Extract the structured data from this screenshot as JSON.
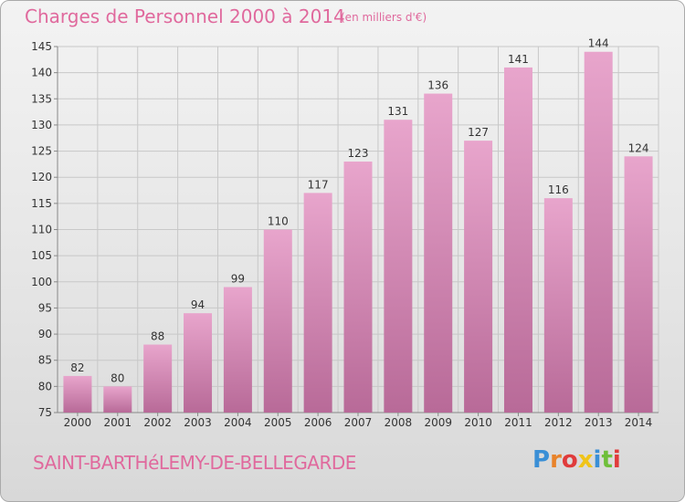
{
  "header": {
    "title": "Charges de Personnel 2000 à 2014",
    "unit": "(en milliers d'€)"
  },
  "footer": {
    "place": "SAINT-BARTHéLEMY-DE-BELLEGARDE",
    "brand": "Proxiti",
    "brand_colors": [
      "#3a8fd6",
      "#e8832a",
      "#e03b3b",
      "#f0c419",
      "#3a8fd6",
      "#6fbf3a",
      "#e03b3b"
    ]
  },
  "colors": {
    "bar_top": "#e8a5cc",
    "bar_bottom": "#b86a98",
    "title": "#e0699d",
    "grid": "#c8c8c8",
    "axis_text": "#333333"
  },
  "chart_data": {
    "type": "bar",
    "title": "Charges de Personnel 2000 à 2014",
    "subtitle": "(en milliers d'€)",
    "categories": [
      "2000",
      "2001",
      "2002",
      "2003",
      "2004",
      "2005",
      "2006",
      "2007",
      "2008",
      "2009",
      "2010",
      "2011",
      "2012",
      "2013",
      "2014"
    ],
    "values": [
      82,
      80,
      88,
      94,
      99,
      110,
      117,
      123,
      131,
      136,
      127,
      141,
      116,
      144,
      124
    ],
    "ylim": [
      75,
      145
    ],
    "yticks": [
      75,
      80,
      85,
      90,
      95,
      100,
      105,
      110,
      115,
      120,
      125,
      130,
      135,
      140,
      145
    ],
    "grid": true,
    "legend": "none"
  }
}
